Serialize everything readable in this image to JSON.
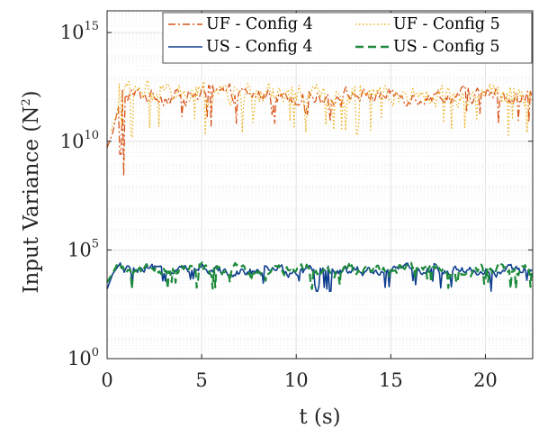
{
  "chart_data": {
    "type": "line",
    "title": "",
    "xlabel": "t (s)",
    "ylabel": "Input Variance (N²)",
    "ylabel_main": "Input Variance (N",
    "ylabel_sup": "2",
    "ylabel_close": ")",
    "xlim": [
      0,
      22.5
    ],
    "ylim_log10": [
      0,
      16
    ],
    "yscale": "log",
    "grid": true,
    "x_ticks": [
      0,
      5,
      10,
      15,
      20
    ],
    "x_tick_labels": [
      "0",
      "5",
      "10",
      "15",
      "20"
    ],
    "y_ticks_log10": [
      0,
      5,
      10,
      15
    ],
    "y_tick_base": "10",
    "y_tick_exponents": [
      "0",
      "5",
      "10",
      "15"
    ],
    "legend_position": "top-right",
    "series": [
      {
        "name": "UF - Config 4",
        "color": "#d95319",
        "dash": "dashdot",
        "base_log10": 12.1,
        "spread": 0.55,
        "dips": [
          [
            0.9,
            8.4
          ],
          [
            0.7,
            9.4
          ],
          [
            5.5,
            10.7
          ],
          [
            11.8,
            10.9
          ],
          [
            20.7,
            10.8
          ],
          [
            22.3,
            10.9
          ]
        ],
        "start": [
          [
            0,
            9.7
          ],
          [
            0.3,
            10.4
          ],
          [
            0.6,
            11.6
          ]
        ]
      },
      {
        "name": "UF - Config 5",
        "color": "#edb120",
        "dash": "dotted",
        "base_log10": 12.2,
        "spread": 0.75,
        "dips": [
          [
            1.3,
            10.2
          ],
          [
            5.2,
            10.3
          ],
          [
            10.5,
            10.4
          ],
          [
            12.6,
            10.5
          ],
          [
            13.2,
            10.3
          ],
          [
            18.2,
            10.6
          ],
          [
            21.2,
            10.2
          ],
          [
            22.2,
            10.4
          ]
        ],
        "start": [
          [
            0.2,
            10.5
          ],
          [
            0.5,
            11.2
          ]
        ]
      },
      {
        "name": "US - Config 4",
        "color": "#0e3f8f",
        "dash": "solid",
        "base_log10": 4.05,
        "spread": 0.35,
        "dips": [
          [
            0.1,
            3.1
          ],
          [
            11.1,
            3.1
          ],
          [
            11.6,
            3.2
          ],
          [
            11.8,
            3.1
          ],
          [
            16.3,
            3.4
          ],
          [
            18.2,
            3.3
          ],
          [
            20.3,
            3.1
          ],
          [
            22.2,
            3.6
          ]
        ],
        "start": [
          [
            0,
            3.2
          ],
          [
            0.3,
            3.9
          ],
          [
            0.7,
            4.4
          ]
        ]
      },
      {
        "name": "US - Config 5",
        "color": "#1e8b3c",
        "dash": "dashed",
        "base_log10": 4.1,
        "spread": 0.38,
        "dips": [
          [
            0.1,
            3.3
          ],
          [
            4.8,
            3.6
          ],
          [
            10.8,
            3.2
          ],
          [
            12.3,
            3.4
          ],
          [
            18.5,
            3.5
          ],
          [
            22.4,
            3.3
          ]
        ],
        "start": [
          [
            0,
            3.5
          ],
          [
            0.4,
            4.1
          ]
        ]
      }
    ]
  }
}
